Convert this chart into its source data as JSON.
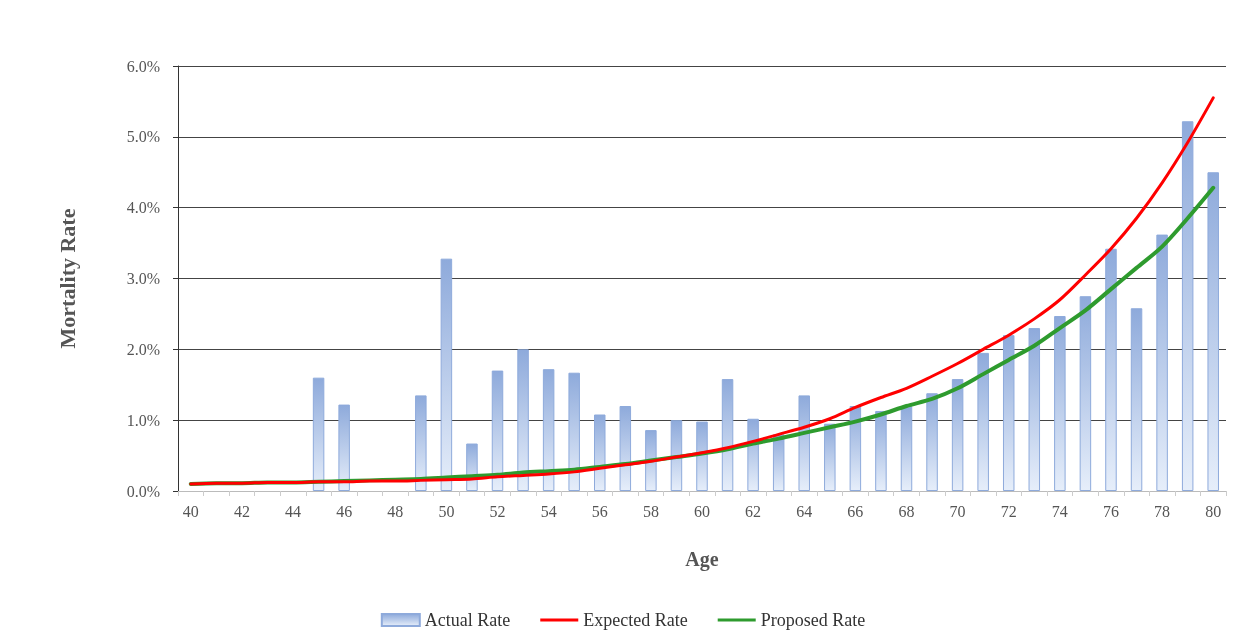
{
  "chart_data": {
    "type": "bar",
    "xlabel": "Age",
    "ylabel": "Mortality Rate",
    "categories": [
      "40",
      null,
      "42",
      null,
      "44",
      null,
      "46",
      null,
      "48",
      null,
      "50",
      null,
      "52",
      null,
      "54",
      null,
      "56",
      null,
      "58",
      null,
      "60",
      null,
      "62",
      null,
      "64",
      null,
      "66",
      null,
      "68",
      null,
      "70",
      null,
      "72",
      null,
      "74",
      null,
      "76",
      null,
      "78",
      null,
      "80"
    ],
    "series": [
      {
        "name": "Actual Rate",
        "color": "#8eaadb",
        "values": [
          null,
          null,
          null,
          null,
          null,
          1.6,
          1.22,
          null,
          null,
          1.35,
          3.28,
          0.67,
          1.7,
          2.0,
          1.72,
          1.67,
          1.08,
          1.2,
          0.86,
          1.0,
          0.98,
          1.58,
          1.02,
          0.8,
          1.35,
          0.95,
          1.2,
          1.13,
          1.2,
          1.38,
          1.58,
          1.95,
          2.2,
          2.3,
          2.47,
          2.75,
          3.42,
          2.58,
          3.62,
          5.22,
          4.5
        ]
      },
      {
        "name": "Expected Rate",
        "type": "line",
        "color": "#ff0000",
        "values": [
          0.1,
          0.11,
          0.11,
          0.12,
          0.12,
          0.13,
          0.13,
          0.14,
          0.14,
          0.15,
          0.16,
          0.17,
          0.2,
          0.22,
          0.24,
          0.27,
          0.32,
          0.37,
          0.42,
          0.48,
          0.54,
          0.61,
          0.7,
          0.8,
          0.9,
          1.02,
          1.18,
          1.32,
          1.45,
          1.62,
          1.8,
          2.0,
          2.2,
          2.43,
          2.7,
          3.05,
          3.42,
          3.85,
          4.35,
          4.92,
          5.55
        ]
      },
      {
        "name": "Proposed Rate",
        "type": "line",
        "color": "#2e9b2e",
        "values": [
          0.1,
          0.11,
          0.11,
          0.12,
          0.12,
          0.13,
          0.14,
          0.15,
          0.16,
          0.17,
          0.19,
          0.21,
          0.23,
          0.26,
          0.28,
          0.3,
          0.34,
          0.38,
          0.43,
          0.48,
          0.53,
          0.59,
          0.67,
          0.74,
          0.82,
          0.9,
          0.98,
          1.08,
          1.2,
          1.3,
          1.45,
          1.65,
          1.85,
          2.05,
          2.3,
          2.55,
          2.85,
          3.15,
          3.45,
          3.85,
          4.28
        ]
      }
    ],
    "ylim": [
      0,
      6
    ],
    "yticks": [
      {
        "value": 0,
        "label": "0.0%"
      },
      {
        "value": 1,
        "label": "1.0%"
      },
      {
        "value": 2,
        "label": "2.0%"
      },
      {
        "value": 3,
        "label": "3.0%"
      },
      {
        "value": 4,
        "label": "4.0%"
      },
      {
        "value": 5,
        "label": "5.0%"
      },
      {
        "value": 6,
        "label": "6.0%"
      }
    ],
    "grid": "y",
    "legend": "bottom",
    "marker": "none",
    "line_style": "solid"
  }
}
